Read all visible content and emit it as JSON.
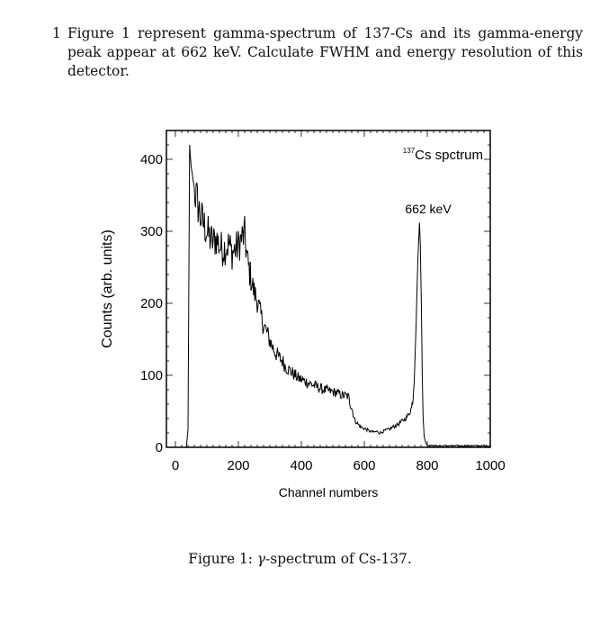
{
  "question": {
    "number": "1",
    "text": "Figure 1 represent gamma-spectrum of 137-Cs and its gamma-energy peak appear at 662 keV. Calculate FWHM and energy resolution of this detector."
  },
  "figure_caption": {
    "label": "Figure 1:",
    "gamma": "γ",
    "text": "-spectrum of Cs-137."
  },
  "chart_data": {
    "type": "line",
    "title": "",
    "xlabel": "Channel numbers",
    "ylabel": "Counts (arb. units)",
    "xlim": [
      0,
      1000
    ],
    "ylim": [
      0,
      400
    ],
    "xticks": [
      "0",
      "200",
      "400",
      "600",
      "800",
      "1000"
    ],
    "yticks": [
      "0",
      "100",
      "200",
      "300",
      "400"
    ],
    "grid": false,
    "annotations": [
      {
        "text_sup": "137",
        "text": "Cs spctrum",
        "position": "top-right"
      },
      {
        "text": "662 keV",
        "attached_to": "peak"
      }
    ],
    "series": [
      {
        "x": [
          35,
          40,
          45,
          50,
          60,
          70,
          80,
          90,
          100,
          110,
          120,
          130,
          140,
          150,
          160,
          170,
          180,
          190,
          200,
          210,
          220,
          230,
          240,
          250,
          260,
          270,
          280,
          290,
          300,
          310,
          320,
          330,
          340,
          350,
          360,
          370,
          380,
          390,
          400,
          410,
          420,
          430,
          440,
          450,
          460,
          470,
          480,
          490,
          500,
          510,
          520,
          530,
          540,
          550,
          555,
          560,
          565,
          570,
          580,
          590,
          600,
          610,
          620,
          630,
          640,
          650,
          660,
          670,
          680,
          690,
          700,
          710,
          720,
          730,
          740,
          750,
          755,
          760,
          765,
          770,
          775,
          778,
          781,
          784,
          787,
          790,
          795,
          800,
          810,
          830,
          850,
          900,
          950,
          1000
        ],
        "y": [
          0,
          25,
          420,
          390,
          360,
          340,
          320,
          310,
          300,
          290,
          285,
          290,
          280,
          275,
          278,
          282,
          270,
          275,
          280,
          290,
          295,
          255,
          235,
          215,
          205,
          185,
          170,
          160,
          148,
          138,
          130,
          124,
          120,
          112,
          108,
          104,
          100,
          96,
          94,
          92,
          90,
          88,
          86,
          84,
          82,
          80,
          79,
          78,
          77,
          76,
          74,
          72,
          72,
          70,
          60,
          55,
          45,
          38,
          32,
          28,
          26,
          24,
          22,
          21,
          22,
          20,
          22,
          24,
          25,
          28,
          30,
          33,
          36,
          40,
          45,
          55,
          70,
          110,
          180,
          260,
          312,
          280,
          200,
          100,
          40,
          15,
          6,
          3,
          2,
          2,
          2,
          2,
          2,
          2
        ]
      }
    ]
  }
}
